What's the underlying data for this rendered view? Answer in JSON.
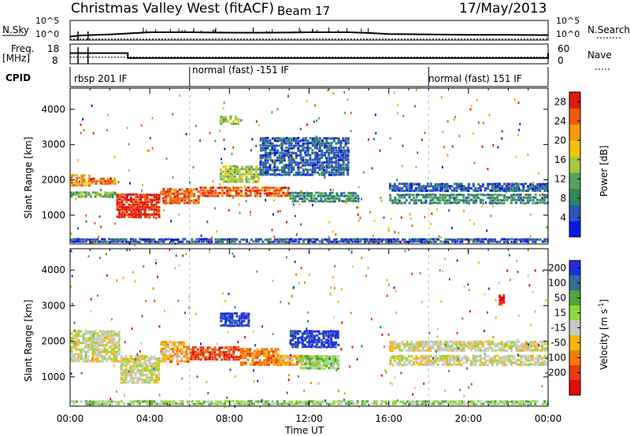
{
  "header": {
    "site": "Christmas Valley West (fitACF)",
    "beam": "Beam 17",
    "date": "17/May/2013"
  },
  "strip_labels": {
    "nsky": "N.Sky",
    "nsearch": "N.Search",
    "freq": "Freq.",
    "freq_unit": "[MHz]",
    "nave": "Nave",
    "cpid": "CPID"
  },
  "strip_ticks": {
    "noise_left": [
      "10^5",
      "10^0"
    ],
    "noise_right": [
      "10^5",
      "10^0"
    ],
    "freq_left": [
      "18",
      "8"
    ],
    "nave_right": [
      "60",
      "0"
    ]
  },
  "cpid_segments": [
    {
      "label": "rbsp 201 IF",
      "start_h": 0
    },
    {
      "label": "normal (fast) -151 IF",
      "start_h": 6
    },
    {
      "label": "normal (fast) 151 IF",
      "start_h": 18
    }
  ],
  "colors": {
    "power": [
      "#0b17e8",
      "#2d55b8",
      "#2f8a5b",
      "#56a35b",
      "#a3c93a",
      "#f5c20a",
      "#f59a0a",
      "#f05a0a",
      "#e01a0a"
    ],
    "velocity": [
      "#1f2fe0",
      "#2e6e95",
      "#4ea63a",
      "#8fd83c",
      "#c8c8c8",
      "#f5b50a",
      "#f57a0a",
      "#ee3a0a",
      "#e00a0a"
    ],
    "axis": "#000000",
    "dashed_rule": "#bbbbbb"
  },
  "chart_data": [
    {
      "type": "line",
      "title": "N.Sky / N.Search",
      "x_range_h": [
        0,
        24
      ],
      "y_scale": "log",
      "y_ticks": [
        "10^0",
        "10^5"
      ],
      "series": [
        {
          "name": "N.Sky",
          "x_h": [
            0,
            0.5,
            1,
            2,
            3,
            4,
            6,
            8,
            10,
            12,
            14,
            15,
            16,
            18,
            20,
            22,
            24
          ],
          "values": [
            1.0,
            1.3,
            1.4,
            1.6,
            1.9,
            2.2,
            2.2,
            2.1,
            2.1,
            2.2,
            2.2,
            2.0,
            1.7,
            1.6,
            1.5,
            1.5,
            1.4
          ]
        },
        {
          "name": "N.Search",
          "x_h": [
            0,
            24
          ],
          "values": [
            0.3,
            0.3
          ]
        }
      ]
    },
    {
      "type": "line",
      "title": "Freq. / Nave",
      "x_range_h": [
        0,
        24
      ],
      "y_ticks_left": [
        "8",
        "18"
      ],
      "y_ticks_right": [
        "0",
        "60"
      ],
      "series": [
        {
          "name": "Freq.",
          "step_x_h": [
            0,
            2.9,
            15,
            24
          ],
          "values": [
            13.5,
            10.5,
            10.5,
            13.5
          ]
        },
        {
          "name": "Nave",
          "step_x_h": [
            0,
            24
          ],
          "values": [
            20,
            20
          ]
        }
      ]
    },
    {
      "type": "heatmap",
      "xlabel": "",
      "ylabel": "Slant Range [km]",
      "x_range_h": [
        0,
        24
      ],
      "y_range_km": [
        180,
        4600
      ],
      "y_ticks": [
        1000,
        2000,
        3000,
        4000
      ],
      "colorbar": {
        "label": "Power [dB]",
        "ticks": [
          4,
          8,
          12,
          16,
          20,
          24,
          28
        ],
        "range": [
          0,
          30
        ]
      },
      "features": [
        {
          "t0": 0.0,
          "t1": 1.0,
          "r0": 1800,
          "r1": 2150,
          "level": 6
        },
        {
          "t0": 1.0,
          "t1": 2.3,
          "r0": 1850,
          "r1": 2050,
          "level": 7
        },
        {
          "t0": 0.0,
          "t1": 2.3,
          "r0": 1480,
          "r1": 1650,
          "level": 3
        },
        {
          "t0": 2.3,
          "t1": 4.5,
          "r0": 900,
          "r1": 1600,
          "level": 8
        },
        {
          "t0": 4.5,
          "t1": 6.5,
          "r0": 1300,
          "r1": 1750,
          "level": 7
        },
        {
          "t0": 6.5,
          "t1": 11.0,
          "r0": 1500,
          "r1": 1800,
          "level": 7
        },
        {
          "t0": 7.5,
          "t1": 9.5,
          "r0": 1900,
          "r1": 2400,
          "level": 4
        },
        {
          "t0": 11.0,
          "t1": 14.5,
          "r0": 1350,
          "r1": 1650,
          "level": 2
        },
        {
          "t0": 9.5,
          "t1": 14.0,
          "r0": 2100,
          "r1": 3200,
          "level": 1
        },
        {
          "t0": 16.0,
          "t1": 24.0,
          "r0": 1300,
          "r1": 1600,
          "level": 2
        },
        {
          "t0": 16.0,
          "t1": 24.0,
          "r0": 1650,
          "r1": 1900,
          "level": 1
        },
        {
          "t0": 7.5,
          "t1": 8.5,
          "r0": 3550,
          "r1": 3800,
          "level": 4
        },
        {
          "t0": 0.0,
          "t1": 24.0,
          "r0": 200,
          "r1": 330,
          "level": 1
        }
      ]
    },
    {
      "type": "heatmap",
      "xlabel": "Time UT",
      "ylabel": "Slant Range [km]",
      "x_range_h": [
        0,
        24
      ],
      "x_ticks": [
        "00:00",
        "04:00",
        "08:00",
        "12:00",
        "16:00",
        "20:00",
        "00:00"
      ],
      "y_range_km": [
        180,
        4600
      ],
      "y_ticks": [
        1000,
        2000,
        3000,
        4000
      ],
      "colorbar": {
        "label": "Velocity [m s^-1]",
        "ticks": [
          200,
          100,
          50,
          15,
          -15,
          -50,
          -100,
          -200
        ]
      },
      "features": [
        {
          "t0": 0.0,
          "t1": 2.5,
          "r0": 1400,
          "r1": 2300,
          "level": 4
        },
        {
          "t0": 2.5,
          "t1": 4.5,
          "r0": 800,
          "r1": 1600,
          "level": 4
        },
        {
          "t0": 4.5,
          "t1": 6.0,
          "r0": 1400,
          "r1": 2000,
          "level": 5
        },
        {
          "t0": 6.0,
          "t1": 8.5,
          "r0": 1450,
          "r1": 1850,
          "level": 7
        },
        {
          "t0": 8.5,
          "t1": 10.5,
          "r0": 1300,
          "r1": 1800,
          "level": 6
        },
        {
          "t0": 10.5,
          "t1": 12.5,
          "r0": 1300,
          "r1": 1600,
          "level": 5
        },
        {
          "t0": 11.5,
          "t1": 13.5,
          "r0": 1200,
          "r1": 1600,
          "level": 3
        },
        {
          "t0": 11.0,
          "t1": 13.5,
          "r0": 1800,
          "r1": 2300,
          "level": 0
        },
        {
          "t0": 7.5,
          "t1": 9.0,
          "r0": 2400,
          "r1": 2800,
          "level": 0
        },
        {
          "t0": 16.0,
          "t1": 24.0,
          "r0": 1300,
          "r1": 1600,
          "level": 4
        },
        {
          "t0": 16.0,
          "t1": 24.0,
          "r0": 1700,
          "r1": 2000,
          "level": 4
        },
        {
          "t0": 21.5,
          "t1": 21.8,
          "r0": 3000,
          "r1": 3300,
          "level": 8
        },
        {
          "t0": 0.0,
          "t1": 24.0,
          "r0": 200,
          "r1": 330,
          "level": 3
        }
      ]
    }
  ]
}
